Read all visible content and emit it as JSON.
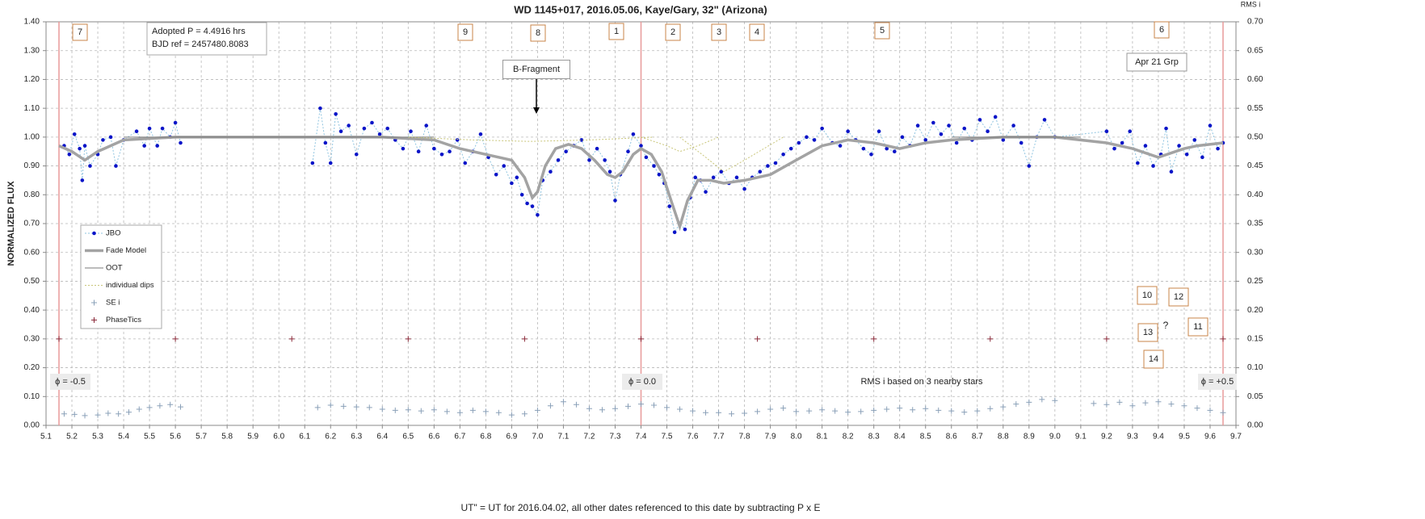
{
  "chart_data": {
    "type": "scatter",
    "title": "WD 1145+017,  2016.05.06,  Kaye/Gary, 32\" (Arizona)",
    "xlabel": "UT\" = UT for 2016.04.02, all other dates referenced to this date by subtracting P x E",
    "ylabel": "NORMALIZED FLUX",
    "y2label": "RMS i",
    "xlim": [
      5.1,
      9.7
    ],
    "ylim": [
      0,
      1.4
    ],
    "y2lim": [
      0,
      0.7
    ],
    "grid": true,
    "xticks": [
      5.1,
      5.2,
      5.3,
      5.4,
      5.5,
      5.6,
      5.7,
      5.8,
      5.9,
      {
        "value": 6,
        "label": "6.0"
      },
      6.1,
      6.2,
      6.3,
      6.4,
      6.5,
      6.6,
      6.7,
      6.8,
      6.9,
      {
        "value": 7,
        "label": "7.0"
      },
      7.1,
      7.2,
      7.3,
      7.4,
      7.5,
      7.6,
      7.7,
      7.8,
      7.9,
      {
        "value": 8,
        "label": "8.0"
      },
      8.1,
      8.2,
      8.3,
      8.4,
      8.5,
      8.6,
      8.7,
      8.8,
      8.9,
      {
        "value": 9,
        "label": "9.0"
      },
      9.1,
      9.2,
      9.3,
      9.4,
      9.5,
      9.6,
      9.7
    ],
    "yticks": [
      {
        "value": 0,
        "label": "0.00"
      },
      {
        "value": 0.1,
        "label": "0.10"
      },
      {
        "value": 0.2,
        "label": "0.20"
      },
      {
        "value": 0.3,
        "label": "0.30"
      },
      {
        "value": 0.4,
        "label": "0.40"
      },
      {
        "value": 0.5,
        "label": "0.50"
      },
      {
        "value": 0.6,
        "label": "0.60"
      },
      {
        "value": 0.7,
        "label": "0.70"
      },
      {
        "value": 0.8,
        "label": "0.80"
      },
      {
        "value": 0.9,
        "label": "0.90"
      },
      {
        "value": 1,
        "label": "1.00"
      },
      {
        "value": 1.1,
        "label": "1.10"
      },
      {
        "value": 1.2,
        "label": "1.20"
      },
      {
        "value": 1.3,
        "label": "1.30"
      },
      {
        "value": 1.4,
        "label": "1.40"
      }
    ],
    "y2ticks": [
      {
        "value": 0,
        "label": "0.00"
      },
      {
        "value": 0.05,
        "label": "0.05"
      },
      {
        "value": 0.1,
        "label": "0.10"
      },
      {
        "value": 0.15,
        "label": "0.15"
      },
      {
        "value": 0.2,
        "label": "0.20"
      },
      {
        "value": 0.25,
        "label": "0.25"
      },
      {
        "value": 0.3,
        "label": "0.30"
      },
      {
        "value": 0.35,
        "label": "0.35"
      },
      {
        "value": 0.4,
        "label": "0.40"
      },
      {
        "value": 0.45,
        "label": "0.45"
      },
      {
        "value": 0.5,
        "label": "0.50"
      },
      {
        "value": 0.55,
        "label": "0.55"
      },
      {
        "value": 0.6,
        "label": "0.60"
      },
      {
        "value": 0.65,
        "label": "0.65"
      },
      {
        "value": 0.7,
        "label": "0.70"
      }
    ],
    "phase_lines": [
      5.15,
      7.4,
      9.65
    ],
    "phase_line_color": "#e89a9a",
    "series": [
      {
        "name": "JBO",
        "color": "#0a14c8",
        "line_color": "#8fc4e0",
        "line_style": "dotted",
        "marker": "circle",
        "x": [
          5.17,
          5.19,
          5.21,
          5.23,
          5.24,
          5.25,
          5.27,
          5.3,
          5.32,
          5.35,
          5.37,
          5.4,
          5.45,
          5.48,
          5.5,
          5.53,
          5.55,
          5.58,
          5.6,
          5.62,
          null,
          6.13,
          6.16,
          6.18,
          6.2,
          6.22,
          6.24,
          6.27,
          6.3,
          6.33,
          6.36,
          6.39,
          6.42,
          6.45,
          6.48,
          6.51,
          6.54,
          6.57,
          6.6,
          6.63,
          6.66,
          6.69,
          6.72,
          6.75,
          6.78,
          6.81,
          6.84,
          6.87,
          6.9,
          6.92,
          6.94,
          6.96,
          6.98,
          7.0,
          7.02,
          7.05,
          7.08,
          7.11,
          7.14,
          7.17,
          7.2,
          7.23,
          7.26,
          7.28,
          7.3,
          7.32,
          7.35,
          7.37,
          7.4,
          7.42,
          7.45,
          7.47,
          7.49,
          7.51,
          7.53,
          7.55,
          7.57,
          7.59,
          7.61,
          7.63,
          7.65,
          7.68,
          7.71,
          7.74,
          7.77,
          7.8,
          7.83,
          7.86,
          7.89,
          7.92,
          7.95,
          7.98,
          8.01,
          8.04,
          8.07,
          8.1,
          8.14,
          8.17,
          8.2,
          8.23,
          8.26,
          8.29,
          8.32,
          8.35,
          8.38,
          8.41,
          8.44,
          8.47,
          8.5,
          8.53,
          8.56,
          8.59,
          8.62,
          8.65,
          8.68,
          8.71,
          8.74,
          8.77,
          8.8,
          8.84,
          8.87,
          8.9,
          8.93,
          8.96,
          9.0,
          9.2,
          9.23,
          9.26,
          9.29,
          9.32,
          9.35,
          9.38,
          9.41,
          9.43,
          9.45,
          9.48,
          9.51,
          9.54,
          9.57,
          9.6,
          9.63,
          9.65
        ],
        "values": [
          0.97,
          0.94,
          1.01,
          0.96,
          0.85,
          0.97,
          0.9,
          0.94,
          0.99,
          1.0,
          0.9,
          0.99,
          1.02,
          0.97,
          1.03,
          0.97,
          1.03,
          1.0,
          1.05,
          0.98,
          null,
          0.91,
          1.1,
          0.98,
          0.91,
          1.08,
          1.02,
          1.04,
          0.94,
          1.03,
          1.05,
          1.01,
          1.03,
          0.99,
          0.96,
          1.02,
          0.95,
          1.04,
          0.96,
          0.94,
          0.95,
          0.99,
          0.91,
          0.95,
          1.01,
          0.93,
          0.87,
          0.9,
          0.84,
          0.86,
          0.8,
          0.77,
          0.76,
          0.73,
          0.85,
          0.88,
          0.92,
          0.95,
          0.97,
          0.99,
          0.92,
          0.96,
          0.92,
          0.88,
          0.78,
          0.87,
          0.95,
          1.01,
          0.97,
          0.93,
          0.9,
          0.87,
          0.84,
          0.76,
          0.67,
          0.7,
          0.68,
          0.79,
          0.86,
          0.85,
          0.81,
          0.86,
          0.88,
          0.84,
          0.86,
          0.82,
          0.86,
          0.88,
          0.9,
          0.91,
          0.94,
          0.96,
          0.98,
          1.0,
          0.99,
          1.03,
          0.98,
          0.97,
          1.02,
          0.99,
          0.96,
          0.94,
          1.02,
          0.96,
          0.95,
          1.0,
          0.97,
          1.04,
          0.99,
          1.05,
          1.01,
          1.04,
          0.98,
          1.03,
          0.99,
          1.06,
          1.02,
          1.07,
          0.99,
          1.04,
          0.98,
          0.9,
          1.0,
          1.06,
          1.0,
          1.02,
          0.96,
          0.98,
          1.02,
          0.91,
          0.97,
          0.9,
          0.94,
          1.03,
          0.88,
          0.97,
          0.94,
          0.99,
          0.93,
          1.04,
          0.96,
          0.98
        ]
      },
      {
        "name": "Fade Model",
        "color": "#a3a3a3",
        "line_style": "thick",
        "x": [
          5.15,
          5.2,
          5.25,
          5.3,
          5.4,
          5.6,
          6.0,
          6.4,
          6.6,
          6.7,
          6.8,
          6.9,
          6.95,
          6.98,
          7.0,
          7.03,
          7.07,
          7.12,
          7.17,
          7.22,
          7.27,
          7.3,
          7.33,
          7.37,
          7.4,
          7.44,
          7.48,
          7.52,
          7.55,
          7.58,
          7.62,
          7.67,
          7.72,
          7.8,
          7.9,
          8.0,
          8.1,
          8.2,
          8.3,
          8.4,
          8.5,
          8.6,
          8.8,
          9.0,
          9.2,
          9.3,
          9.4,
          9.5,
          9.55,
          9.65
        ],
        "values": [
          0.97,
          0.95,
          0.92,
          0.95,
          0.99,
          1.0,
          1.0,
          1.0,
          0.99,
          0.96,
          0.94,
          0.92,
          0.86,
          0.79,
          0.81,
          0.9,
          0.96,
          0.975,
          0.96,
          0.92,
          0.87,
          0.86,
          0.88,
          0.94,
          0.96,
          0.94,
          0.88,
          0.77,
          0.69,
          0.78,
          0.85,
          0.85,
          0.84,
          0.85,
          0.87,
          0.92,
          0.97,
          0.99,
          0.98,
          0.96,
          0.98,
          0.99,
          1.0,
          1.0,
          0.98,
          0.96,
          0.93,
          0.96,
          0.97,
          0.98
        ]
      },
      {
        "name": "OOT",
        "color": "#7a7a7a",
        "line_style": "solid",
        "x": [
          5.4,
          6.6,
          null,
          8.6,
          9.1
        ],
        "values": [
          1.0,
          1.0,
          null,
          1.0,
          1.0
        ]
      },
      {
        "name": "individual dips",
        "color": "#c9c67a",
        "line_style": "dotted",
        "x": [
          6.5,
          6.75,
          6.97,
          7.2,
          7.45,
          null,
          7.55,
          7.65,
          7.72,
          7.8,
          7.95,
          null,
          7.4,
          7.5,
          7.55,
          7.62,
          7.7
        ],
        "values": [
          1.0,
          0.99,
          0.985,
          0.99,
          1.0,
          null,
          1.0,
          0.93,
          0.88,
          0.92,
          1.0,
          null,
          1.0,
          0.97,
          0.95,
          0.97,
          1.0
        ]
      },
      {
        "name": "SE i",
        "color": "#8aa0b8",
        "marker": "plus",
        "axis": "y2",
        "x": [
          5.17,
          5.21,
          5.25,
          5.3,
          5.34,
          5.38,
          5.42,
          5.46,
          5.5,
          5.54,
          5.58,
          5.62,
          null,
          6.15,
          6.2,
          6.25,
          6.3,
          6.35,
          6.4,
          6.45,
          6.5,
          6.55,
          6.6,
          6.65,
          6.7,
          6.75,
          6.8,
          6.85,
          6.9,
          6.95,
          7.0,
          7.05,
          7.1,
          7.15,
          7.2,
          7.25,
          7.3,
          7.35,
          7.4,
          7.45,
          7.5,
          7.55,
          7.6,
          7.65,
          7.7,
          7.75,
          7.8,
          7.85,
          7.9,
          7.95,
          8.0,
          8.05,
          8.1,
          8.15,
          8.2,
          8.25,
          8.3,
          8.35,
          8.4,
          8.45,
          8.5,
          8.55,
          8.6,
          8.65,
          8.7,
          8.75,
          8.8,
          8.85,
          8.9,
          8.95,
          9.0,
          null,
          9.15,
          9.2,
          9.25,
          9.3,
          9.35,
          9.4,
          9.45,
          9.5,
          9.55,
          9.6,
          9.65
        ],
        "values": [
          0.02,
          0.019,
          0.017,
          0.018,
          0.021,
          0.02,
          0.023,
          0.028,
          0.031,
          0.034,
          0.036,
          0.032,
          null,
          0.031,
          0.035,
          0.033,
          0.032,
          0.031,
          0.028,
          0.026,
          0.027,
          0.025,
          0.027,
          0.024,
          0.022,
          0.026,
          0.024,
          0.022,
          0.018,
          0.02,
          0.026,
          0.034,
          0.041,
          0.036,
          0.029,
          0.027,
          0.029,
          0.033,
          0.037,
          0.035,
          0.031,
          0.028,
          0.025,
          0.022,
          0.022,
          0.02,
          0.021,
          0.024,
          0.028,
          0.03,
          0.024,
          0.025,
          0.027,
          0.025,
          0.023,
          0.024,
          0.026,
          0.028,
          0.03,
          0.027,
          0.029,
          0.026,
          0.025,
          0.023,
          0.025,
          0.029,
          0.032,
          0.037,
          0.04,
          0.045,
          0.043,
          null,
          0.038,
          0.036,
          0.04,
          0.034,
          0.039,
          0.041,
          0.037,
          0.034,
          0.03,
          0.026,
          0.022
        ]
      },
      {
        "name": "PhaseTics",
        "color": "#8b2a3a",
        "marker": "plus",
        "x": [
          5.15,
          5.6,
          6.05,
          6.5,
          6.95,
          7.4,
          7.85,
          8.3,
          8.75,
          9.2,
          9.65
        ],
        "values": [
          0.3,
          0.3,
          0.3,
          0.3,
          0.3,
          0.3,
          0.3,
          0.3,
          0.3,
          0.3,
          0.3
        ]
      }
    ],
    "annotations": [
      "7",
      "9",
      "8",
      "1",
      "2",
      "3",
      "4",
      "5",
      "6",
      "10",
      "12",
      "13",
      "?",
      "11",
      "14",
      "B-Fragment",
      "Apr 21 Grp",
      "ϕ = -0.5",
      "ϕ = 0.0",
      "ϕ = +0.5",
      "RMS i based on 3 nearby stars",
      "Adopted P = 4.4916 hrs",
      "BJD ref = 2457480.8083"
    ]
  }
}
